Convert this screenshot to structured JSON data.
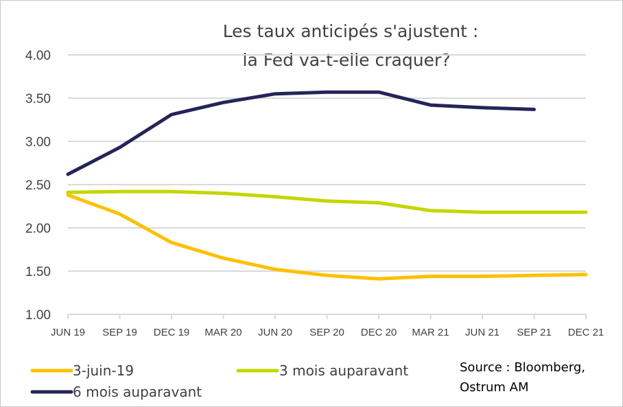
{
  "chart_data": {
    "type": "line",
    "title_lines": [
      "Les taux anticipés s'ajustent :",
      "la Fed va-t-elle craquer?"
    ],
    "categories": [
      "JUN 19",
      "SEP 19",
      "DEC 19",
      "MAR 20",
      "JUN 20",
      "SEP 20",
      "DEC 20",
      "MAR 21",
      "JUN 21",
      "SEP 21",
      "DEC 21"
    ],
    "y_ticks": [
      "1.00",
      "1.50",
      "2.00",
      "2.50",
      "3.00",
      "3.50",
      "4.00"
    ],
    "ylim": [
      1.0,
      4.0
    ],
    "grid": "horizontal",
    "legend_position": "bottom",
    "series": [
      {
        "name": "3-juin-19",
        "color": "#ffc000",
        "values": [
          2.38,
          2.16,
          1.83,
          1.65,
          1.52,
          1.45,
          1.41,
          1.44,
          1.44,
          1.45,
          1.46
        ]
      },
      {
        "name": "3 mois auparavant",
        "color": "#c4d600",
        "values": [
          2.41,
          2.42,
          2.42,
          2.4,
          2.36,
          2.31,
          2.29,
          2.2,
          2.18,
          2.18,
          2.18
        ]
      },
      {
        "name": "6 mois auparavant",
        "color": "#25245a",
        "values": [
          2.62,
          2.93,
          3.31,
          3.45,
          3.55,
          3.57,
          3.57,
          3.42,
          3.39,
          3.37,
          null
        ]
      }
    ],
    "source_lines": [
      "Source : Bloomberg,",
      "Ostrum AM"
    ]
  },
  "colors": {
    "gridline": "#d9d9d9",
    "text": "#404040"
  }
}
